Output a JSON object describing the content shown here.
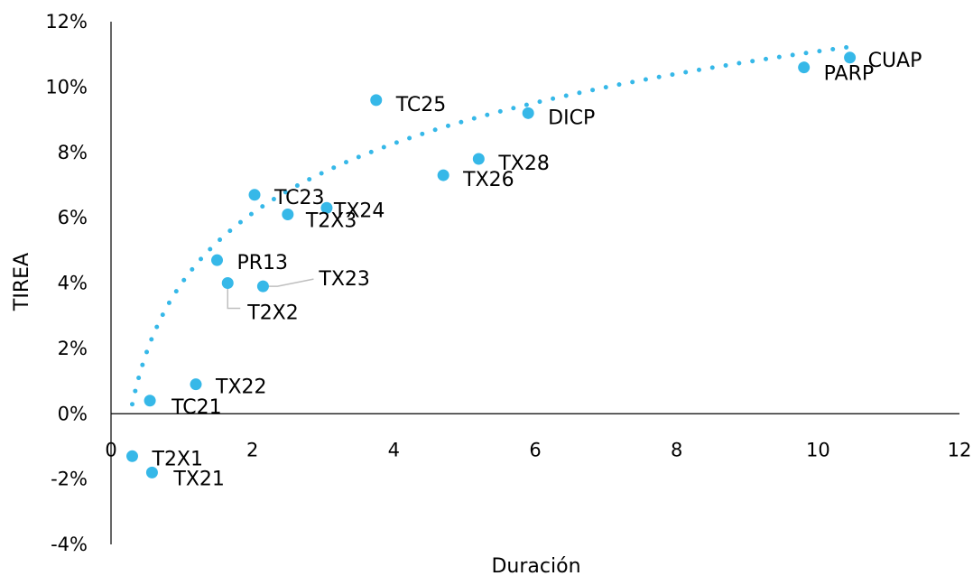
{
  "chart_data": {
    "type": "scatter",
    "title": "",
    "xlabel": "Duración",
    "ylabel": "TIREA",
    "xlim": [
      0,
      12
    ],
    "ylim": [
      -4,
      12
    ],
    "x_ticks": [
      0,
      2,
      4,
      6,
      8,
      10,
      12
    ],
    "x_tick_labels": [
      "0",
      "2",
      "4",
      "6",
      "8",
      "10",
      "12"
    ],
    "y_ticks": [
      -4,
      -2,
      0,
      2,
      4,
      6,
      8,
      10,
      12
    ],
    "y_tick_labels": [
      "-4%",
      "-2%",
      "0%",
      "2%",
      "4%",
      "6%",
      "8%",
      "10%",
      "12%"
    ],
    "grid": false,
    "legend": "none",
    "colors": {
      "points": "#36B8E8",
      "trendline": "#36B8E8",
      "axis": "#000000",
      "leader": "#BFBFBF"
    },
    "points": [
      {
        "label": "TX21",
        "x": 0.58,
        "y": -1.8
      },
      {
        "label": "T2X1",
        "x": 0.3,
        "y": -1.3
      },
      {
        "label": "TC21",
        "x": 0.55,
        "y": 0.4
      },
      {
        "label": "TX22",
        "x": 1.2,
        "y": 0.9
      },
      {
        "label": "T2X2",
        "x": 1.65,
        "y": 4.0
      },
      {
        "label": "TX23",
        "x": 2.15,
        "y": 3.9
      },
      {
        "label": "PR13",
        "x": 1.5,
        "y": 4.7
      },
      {
        "label": "TC23",
        "x": 2.03,
        "y": 6.7
      },
      {
        "label": "T2X3",
        "x": 2.5,
        "y": 6.1
      },
      {
        "label": "TX24",
        "x": 3.05,
        "y": 6.3
      },
      {
        "label": "TC25",
        "x": 3.75,
        "y": 9.6
      },
      {
        "label": "TX26",
        "x": 4.7,
        "y": 7.3
      },
      {
        "label": "TX28",
        "x": 5.2,
        "y": 7.8
      },
      {
        "label": "DICP",
        "x": 5.9,
        "y": 9.2
      },
      {
        "label": "PARP",
        "x": 9.8,
        "y": 10.6
      },
      {
        "label": "CUAP",
        "x": 10.45,
        "y": 10.9
      }
    ],
    "trendline": {
      "type": "logarithmic",
      "a": 3.08,
      "b": 4.0,
      "x_range": [
        0.3,
        10.45
      ]
    }
  }
}
